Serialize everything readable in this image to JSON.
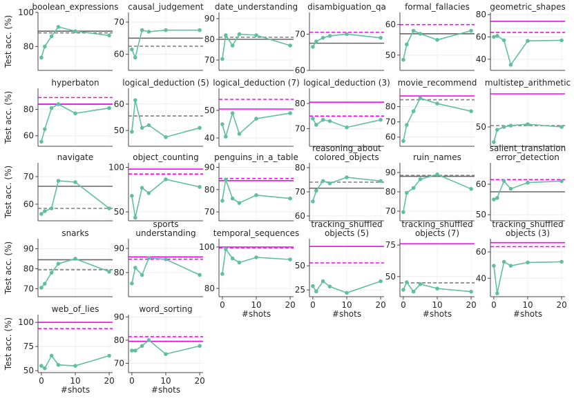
{
  "figure": {
    "x_label": "#shots",
    "y_label": "Test acc. (%)"
  },
  "colors": {
    "series": "#5fbf9f",
    "solid_gray": "#666666",
    "dashed_gray": "#7f7f7f",
    "magenta": "#ff00ff"
  },
  "chart_data": [
    {
      "type": "line",
      "title": [
        "boolean_expressions"
      ],
      "x": [
        0,
        1,
        3,
        5,
        10,
        20
      ],
      "y": [
        73.5,
        80,
        86,
        91.5,
        89,
        86.5
      ],
      "ref_solid_gray": 89,
      "ref_dashed_gray": 88,
      "ylim": [
        66,
        100
      ],
      "yticks": [
        80,
        100
      ],
      "xlim": [
        -1,
        21
      ]
    },
    {
      "type": "line",
      "title": [
        "causal_judgement"
      ],
      "x": [
        0,
        1,
        3,
        5,
        10,
        20
      ],
      "y": [
        61.5,
        59,
        67.5,
        67,
        67.5,
        67.5
      ],
      "ref_solid_gray": 65,
      "ref_dashed_gray": 62.5,
      "ylim": [
        55,
        73
      ],
      "yticks": [
        60,
        70
      ],
      "xlim": [
        -1,
        21
      ]
    },
    {
      "type": "line",
      "title": [
        "date_understanding"
      ],
      "x": [
        0,
        1,
        3,
        5,
        10,
        20
      ],
      "y": [
        70.5,
        82,
        77,
        82.5,
        82,
        77
      ],
      "ref_solid_gray": 80,
      "ref_dashed_gray": 81,
      "ylim": [
        65,
        93
      ],
      "yticks": [
        70,
        80,
        90
      ],
      "xlim": [
        -1,
        21
      ]
    },
    {
      "type": "line",
      "title": [
        "disambiguation_qa"
      ],
      "x": [
        0,
        1,
        3,
        5,
        10,
        20
      ],
      "y": [
        66.5,
        68,
        69,
        69.5,
        70,
        69
      ],
      "ref_solid_gray": 67.5,
      "ref_magenta_solid": null,
      "ref_magenta_dashed": 70.5,
      "ylim": [
        60,
        76
      ],
      "yticks": [
        60,
        70
      ],
      "xlim": [
        -1,
        21
      ]
    },
    {
      "type": "line",
      "title": [
        "formal_fallacies"
      ],
      "x": [
        0,
        1,
        3,
        5,
        10,
        20
      ],
      "y": [
        48.5,
        53.5,
        58,
        57,
        55,
        58
      ],
      "ref_solid_gray": 57,
      "ref_magenta_dashed": 60,
      "ylim": [
        45,
        64
      ],
      "yticks": [
        50,
        60
      ],
      "xlim": [
        -1,
        21
      ]
    },
    {
      "type": "line",
      "title": [
        "geometric_shapes"
      ],
      "x": [
        0,
        1,
        3,
        5,
        10,
        20
      ],
      "y": [
        60,
        61,
        57,
        35,
        56.5,
        57
      ],
      "ref_magenta_solid": 74,
      "ref_magenta_dashed": 64,
      "ylim": [
        30,
        82
      ],
      "yticks": [
        40,
        60,
        80
      ],
      "xlim": [
        -1,
        21
      ]
    },
    {
      "type": "line",
      "title": [
        "hyperbaton"
      ],
      "x": [
        0,
        1,
        3,
        5,
        10,
        20
      ],
      "y": [
        55.5,
        65,
        81,
        84,
        77,
        81
      ],
      "ref_solid_gray": 84,
      "ref_magenta_solid": 84,
      "ref_magenta_dashed": 89,
      "ylim": [
        52,
        96
      ],
      "yticks": [
        60,
        80
      ],
      "xlim": [
        -1,
        21
      ]
    },
    {
      "type": "line",
      "title": [
        "logical_deduction (5)"
      ],
      "x": [
        0,
        1,
        3,
        5,
        10,
        20
      ],
      "y": [
        49.5,
        61.5,
        51,
        52,
        47.5,
        51
      ],
      "ref_dashed_gray": 55.5,
      "ylim": [
        44,
        66
      ],
      "yticks": [
        50,
        60
      ],
      "xlim": [
        -1,
        21
      ]
    },
    {
      "type": "line",
      "title": [
        "logical_deduction (7)"
      ],
      "x": [
        0,
        1,
        3,
        5,
        10,
        20
      ],
      "y": [
        45,
        40.5,
        49,
        41.5,
        47,
        49
      ],
      "ref_magenta_solid": 50.5,
      "ref_magenta_dashed": 54,
      "ylim": [
        37,
        58
      ],
      "yticks": [
        40,
        50
      ],
      "xlim": [
        -1,
        21
      ]
    },
    {
      "type": "line",
      "title": [
        "logical_deduction (3)"
      ],
      "x": [
        0,
        1,
        3,
        5,
        10,
        20
      ],
      "y": [
        74,
        71.5,
        73.5,
        73,
        70.5,
        73.5
      ],
      "ref_magenta_solid": 80.5,
      "ref_magenta_dashed": 75,
      "ylim": [
        63,
        86
      ],
      "yticks": [
        70,
        80
      ],
      "xlim": [
        -1,
        21
      ]
    },
    {
      "type": "line",
      "title": [
        "movie_recommend"
      ],
      "x": [
        0,
        1,
        3,
        5,
        10,
        20
      ],
      "y": [
        57.5,
        68,
        77,
        85.5,
        82,
        77
      ],
      "ref_dashed_gray": 84.5,
      "ref_magenta_solid": 87,
      "ylim": [
        54,
        92
      ],
      "yticks": [
        60,
        70,
        80
      ],
      "xlim": [
        -1,
        21
      ]
    },
    {
      "type": "line",
      "title": [
        "multistep_arithmetic"
      ],
      "x": [
        0,
        1,
        3,
        5,
        10,
        20
      ],
      "y": [
        44.5,
        49,
        50,
        50.5,
        51,
        50
      ],
      "ref_dashed_gray": 50.5,
      "ref_magenta_solid": 62,
      "ylim": [
        43,
        64
      ],
      "yticks": [
        50
      ],
      "xlim": [
        -1,
        21
      ]
    },
    {
      "type": "line",
      "title": [
        "navigate"
      ],
      "x": [
        0,
        1,
        3,
        5,
        10,
        20
      ],
      "y": [
        56.5,
        57.5,
        58.5,
        68.5,
        68,
        58.5
      ],
      "ref_solid_gray": 66.5,
      "ref_dashed_gray": 58.5,
      "ylim": [
        54,
        75
      ],
      "yticks": [
        60,
        70
      ],
      "xlim": [
        -1,
        21
      ]
    },
    {
      "type": "line",
      "title": [
        "object_counting"
      ],
      "x": [
        0,
        1,
        3,
        5,
        10,
        20
      ],
      "y": [
        68,
        43.5,
        77,
        71,
        86.5,
        78
      ],
      "ref_magenta_solid": 98,
      "ref_magenta_dashed": 92.5,
      "ylim": [
        40,
        105
      ],
      "yticks": [
        50,
        100
      ],
      "xlim": [
        -1,
        21
      ]
    },
    {
      "type": "line",
      "title": [
        "penguins_in_a_table"
      ],
      "x": [
        0,
        1,
        3,
        5,
        10,
        20
      ],
      "y": [
        75,
        84.5,
        76,
        74,
        77.5,
        76
      ],
      "ref_magenta_solid": 84,
      "ref_magenta_dashed": 85,
      "ylim": [
        66,
        92
      ],
      "yticks": [
        70,
        80,
        90
      ],
      "xlim": [
        -1,
        21
      ]
    },
    {
      "type": "line",
      "title": [
        "reasoning_about",
        "colored_objects"
      ],
      "x": [
        0,
        1,
        3,
        5,
        10,
        20
      ],
      "y": [
        66,
        70.5,
        74.5,
        73.5,
        76,
        74.5
      ],
      "ref_solid_gray": 71.5,
      "ref_dashed_gray": 74,
      "ylim": [
        58,
        82
      ],
      "yticks": [
        60,
        70,
        80
      ],
      "xlim": [
        -1,
        21
      ]
    },
    {
      "type": "line",
      "title": [
        "ruin_names"
      ],
      "x": [
        0,
        1,
        3,
        5,
        10,
        20
      ],
      "y": [
        69.5,
        79.5,
        82,
        86.5,
        89,
        81.5
      ],
      "ref_solid_gray": 88,
      "ref_dashed_gray": 88.5,
      "ylim": [
        65,
        95
      ],
      "yticks": [
        70,
        80,
        90
      ],
      "xlim": [
        -1,
        21
      ]
    },
    {
      "type": "line",
      "title": [
        "salient_translation",
        "error_detection"
      ],
      "x": [
        0,
        1,
        3,
        5,
        10,
        20
      ],
      "y": [
        55,
        55.5,
        61,
        58.5,
        60.5,
        61
      ],
      "ref_solid_gray": 57.5,
      "ref_magenta_dashed": 61.5,
      "ylim": [
        48,
        67
      ],
      "yticks": [
        50,
        60
      ],
      "xlim": [
        -1,
        21
      ]
    },
    {
      "type": "line",
      "title": [
        "snarks"
      ],
      "x": [
        0,
        1,
        3,
        5,
        10,
        20
      ],
      "y": [
        70.5,
        72.5,
        78,
        82.5,
        85,
        78.5
      ],
      "ref_solid_gray": 84.5,
      "ref_dashed_gray": 79.5,
      "ylim": [
        66,
        95
      ],
      "yticks": [
        70,
        80,
        90
      ],
      "xlim": [
        -1,
        21
      ]
    },
    {
      "type": "line",
      "title": [
        "sports",
        "understanding"
      ],
      "x": [
        0,
        1,
        3,
        5,
        10,
        20
      ],
      "y": [
        75.5,
        82,
        79,
        86,
        85.5,
        79
      ],
      "ref_magenta_solid": 86.5,
      "ref_magenta_dashed": 85.5,
      "ylim": [
        70,
        94
      ],
      "yticks": [
        80,
        90
      ],
      "xlim": [
        -1,
        21
      ]
    },
    {
      "type": "line",
      "title": [
        "temporal_sequences"
      ],
      "x": [
        0,
        1,
        3,
        5,
        10,
        20
      ],
      "y": [
        87,
        99,
        94.5,
        92.5,
        95,
        94
      ],
      "ref_magenta_solid": 100,
      "ref_magenta_dashed": 99.5,
      "ylim": [
        76,
        104
      ],
      "yticks": [
        80,
        100
      ],
      "xlim": [
        -1,
        21
      ]
    },
    {
      "type": "line",
      "title": [
        "tracking_shuffled",
        "objects (5)"
      ],
      "x": [
        0,
        1,
        3,
        5,
        10,
        20
      ],
      "y": [
        29,
        23.5,
        34,
        28.5,
        22,
        34
      ],
      "ref_magenta_solid": 70,
      "ref_magenta_dashed": 53,
      "ylim": [
        18,
        78
      ],
      "yticks": [
        25,
        50
      ],
      "xlim": [
        -1,
        21
      ]
    },
    {
      "type": "line",
      "title": [
        "tracking_shuffled",
        "objects (7)"
      ],
      "x": [
        0,
        1,
        3,
        5,
        10,
        20
      ],
      "y": [
        39.5,
        45.5,
        38,
        44,
        40.5,
        38
      ],
      "ref_dashed_gray": 45,
      "ref_magenta_solid": 76,
      "ylim": [
        34,
        80
      ],
      "yticks": [
        50,
        75
      ],
      "xlim": [
        -1,
        21
      ]
    },
    {
      "type": "line",
      "title": [
        "tracking_shuffled",
        "objects (3)"
      ],
      "x": [
        0,
        1,
        3,
        5,
        10,
        20
      ],
      "y": [
        49.5,
        28.5,
        52.5,
        49.5,
        52,
        52.5
      ],
      "ref_magenta_solid": 67,
      "ref_magenta_dashed": 64,
      "ylim": [
        26,
        70
      ],
      "yticks": [
        40,
        60
      ],
      "xlim": [
        -1,
        21
      ]
    },
    {
      "type": "line",
      "title": [
        "web_of_lies"
      ],
      "x": [
        0,
        1,
        3,
        5,
        10,
        20
      ],
      "y": [
        55,
        52.5,
        65.5,
        56,
        55,
        65.5
      ],
      "ref_magenta_solid": 100,
      "ref_magenta_dashed": 93.5,
      "ylim": [
        48,
        108
      ],
      "yticks": [
        50,
        75,
        100
      ],
      "xlim": [
        -1,
        21
      ]
    },
    {
      "type": "line",
      "title": [
        "word_sorting"
      ],
      "x": [
        0,
        1,
        3,
        5,
        10,
        20
      ],
      "y": [
        75.5,
        75.5,
        77.5,
        80,
        74,
        77.5
      ],
      "ref_magenta_solid": 79.5,
      "ref_magenta_dashed": 81.5,
      "ylim": [
        66,
        91
      ],
      "yticks": [
        70,
        80,
        90
      ],
      "xlim": [
        -1,
        21
      ]
    }
  ]
}
